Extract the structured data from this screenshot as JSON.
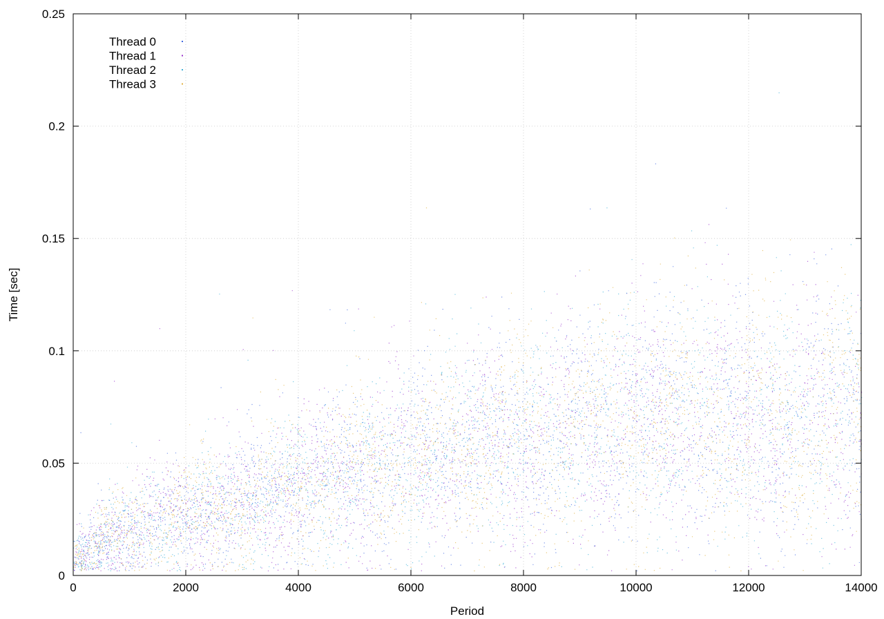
{
  "chart_data": {
    "type": "scatter",
    "title": "",
    "xlabel": "Period",
    "ylabel": "Time [sec]",
    "xlim": [
      0,
      14000
    ],
    "ylim": [
      0,
      0.25
    ],
    "x_ticks": [
      0,
      2000,
      4000,
      6000,
      8000,
      10000,
      12000,
      14000
    ],
    "y_ticks": [
      0,
      0.05,
      0.1,
      0.15,
      0.2,
      0.25
    ],
    "x_tick_labels": [
      "0",
      "2000",
      "4000",
      "6000",
      "8000",
      "10000",
      "12000",
      "14000"
    ],
    "y_tick_labels": [
      "0",
      "0.05",
      "0.1",
      "0.15",
      "0.2",
      "0.25"
    ],
    "grid": true,
    "grid_style": "dotted",
    "legend_position": "top-left",
    "series": [
      {
        "name": "Thread 0",
        "color": "#4169e1"
      },
      {
        "name": "Thread 1",
        "color": "#9932cc"
      },
      {
        "name": "Thread 2",
        "color": "#3cb0d8"
      },
      {
        "name": "Thread 3",
        "color": "#e0b040"
      }
    ],
    "trend": {
      "x": [
        0,
        500,
        1000,
        2000,
        3000,
        4000,
        5000,
        6000,
        7000,
        8000,
        9000,
        10000,
        11000,
        12000,
        13000,
        14000
      ],
      "y": [
        0.006,
        0.016,
        0.022,
        0.027,
        0.033,
        0.04,
        0.046,
        0.052,
        0.057,
        0.062,
        0.066,
        0.069,
        0.07,
        0.071,
        0.072,
        0.073
      ]
    },
    "note": "Dense point cloud (thousands of points per series) rendered procedurally around the trend."
  }
}
